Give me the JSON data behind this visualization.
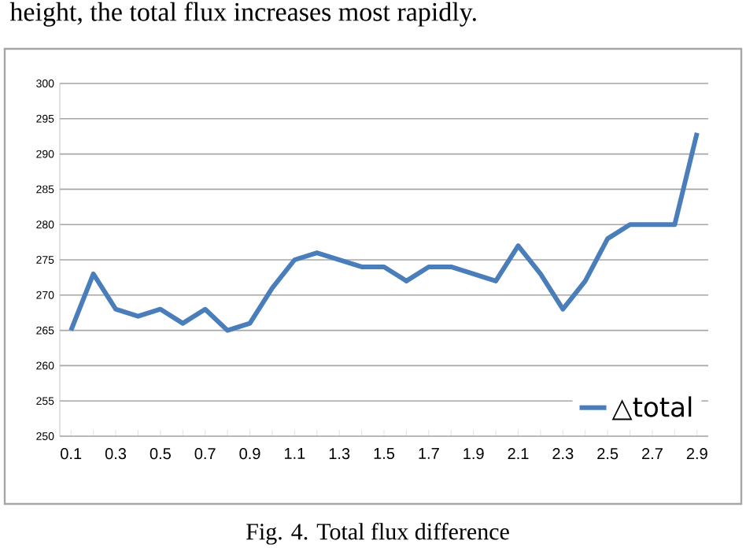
{
  "chart_data": {
    "type": "line",
    "categories": [
      "0.1",
      null,
      "0.3",
      null,
      "0.5",
      null,
      "0.7",
      null,
      "0.9",
      null,
      "1.1",
      null,
      "1.3",
      null,
      "1.5",
      null,
      "1.7",
      null,
      "1.9",
      null,
      "2.1",
      null,
      "2.3",
      null,
      "2.5",
      null,
      "2.7",
      null,
      "2.9"
    ],
    "series": [
      {
        "name": "△total",
        "color": "#4a7ebb",
        "values": [
          265,
          273,
          268,
          267,
          268,
          266,
          268,
          265,
          266,
          271,
          275,
          276,
          275,
          274,
          274,
          272,
          274,
          274,
          273,
          272,
          277,
          273,
          268,
          272,
          278,
          280,
          280,
          280,
          293
        ]
      }
    ],
    "ylim": [
      250,
      300
    ],
    "yticks": [
      250,
      255,
      260,
      265,
      270,
      275,
      280,
      285,
      290,
      295,
      300
    ],
    "grid": "y",
    "legend": "bottom right",
    "marker": "none",
    "line_style": "solid",
    "annotations": [
      "height, the total flux increases most rapidly.",
      "Fig. 4. Total flux difference"
    ]
  }
}
